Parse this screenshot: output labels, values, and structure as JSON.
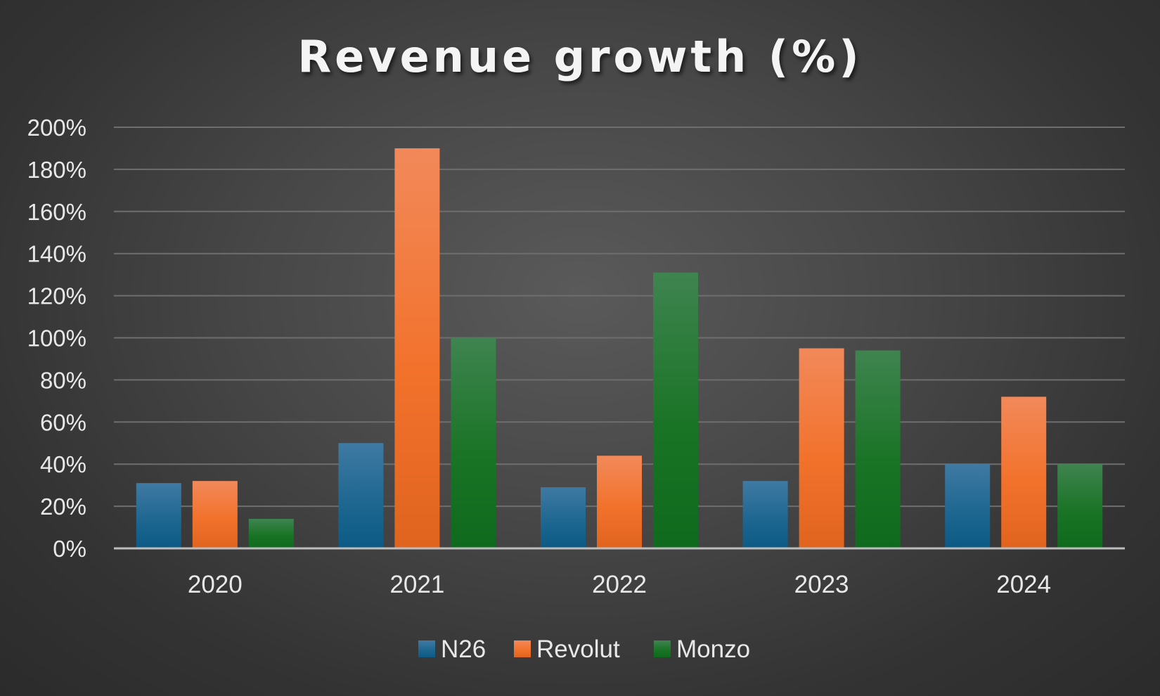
{
  "chart_data": {
    "type": "bar",
    "title": "Revenue growth (%)",
    "categories": [
      "2020",
      "2021",
      "2022",
      "2023",
      "2024"
    ],
    "series": [
      {
        "name": "N26",
        "values": [
          31,
          50,
          29,
          32,
          40
        ],
        "color": "#1f6f9a"
      },
      {
        "name": "Revolut",
        "values": [
          32,
          190,
          44,
          95,
          72
        ],
        "color": "#f07a30"
      },
      {
        "name": "Monzo",
        "values": [
          14,
          100,
          131,
          94,
          40
        ],
        "color": "#1f7d2b"
      }
    ],
    "ylim": [
      0,
      200
    ],
    "yticks": [
      0,
      20,
      40,
      60,
      80,
      100,
      120,
      140,
      160,
      180,
      200
    ],
    "ytick_labels": [
      "0%",
      "20%",
      "40%",
      "60%",
      "80%",
      "100%",
      "120%",
      "140%",
      "160%",
      "180%",
      "200%"
    ],
    "xlabel": "",
    "ylabel": "",
    "grid": true,
    "legend_position": "bottom-center"
  }
}
